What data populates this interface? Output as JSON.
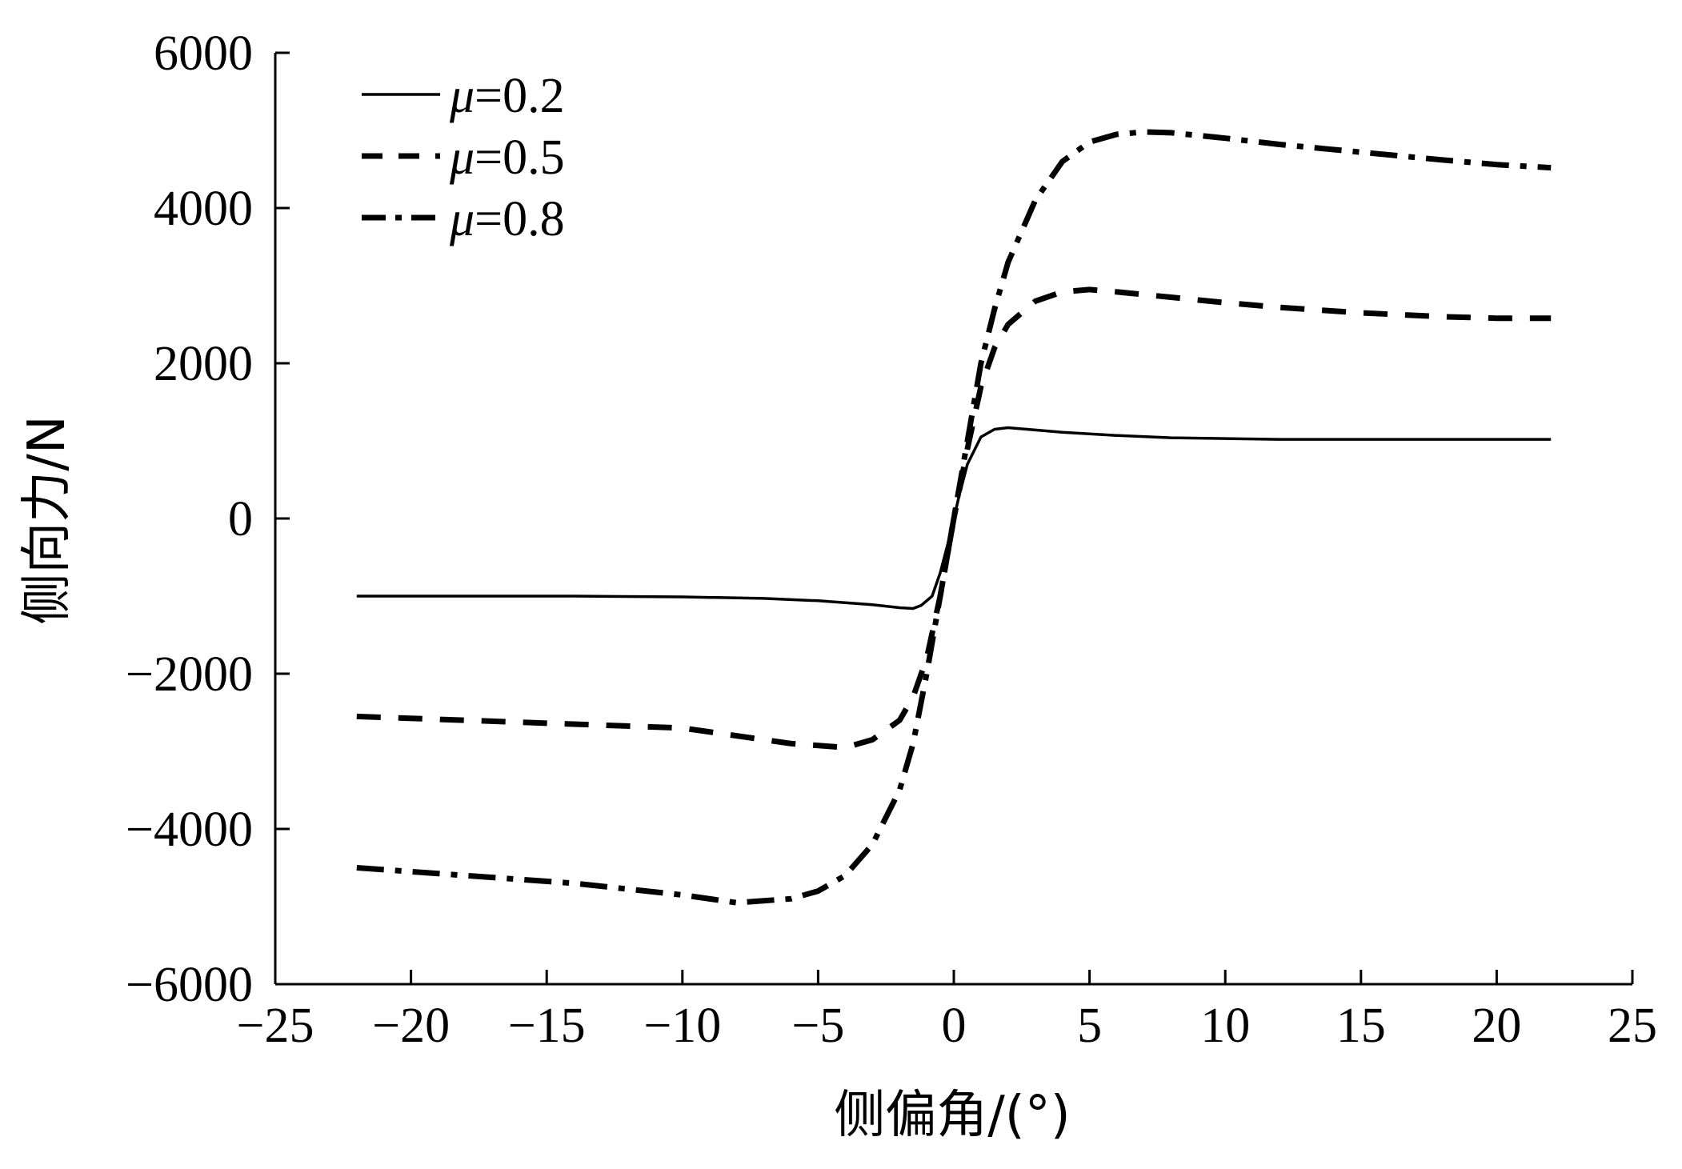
{
  "chart_data": {
    "type": "line",
    "xlabel": "侧偏角/(°)",
    "ylabel": "侧向力/N",
    "xlim": [
      -25,
      25
    ],
    "ylim": [
      -6000,
      6000
    ],
    "xticks": [
      "−25",
      "−20",
      "−15",
      "−10",
      "−5",
      "0",
      "5",
      "10",
      "15",
      "20",
      "25"
    ],
    "yticks": [
      "−6000",
      "−4000",
      "−2000",
      "0",
      "2000",
      "4000",
      "6000"
    ],
    "grid": false,
    "legend_position": "top-left",
    "series": [
      {
        "name": "μ=0.2",
        "mu_symbol": "μ",
        "mu_value": "=0.2",
        "style": "solid",
        "color": "#000000",
        "points": [
          [
            -22,
            -1000
          ],
          [
            -18,
            -1000
          ],
          [
            -14,
            -1000
          ],
          [
            -10,
            -1010
          ],
          [
            -7,
            -1030
          ],
          [
            -5,
            -1060
          ],
          [
            -3,
            -1110
          ],
          [
            -2,
            -1150
          ],
          [
            -1.5,
            -1160
          ],
          [
            -1.2,
            -1120
          ],
          [
            -0.8,
            -1000
          ],
          [
            -0.5,
            -700
          ],
          [
            -0.2,
            -300
          ],
          [
            0,
            0
          ],
          [
            0.2,
            300
          ],
          [
            0.5,
            700
          ],
          [
            1,
            1050
          ],
          [
            1.5,
            1150
          ],
          [
            2,
            1170
          ],
          [
            3,
            1140
          ],
          [
            4,
            1110
          ],
          [
            6,
            1070
          ],
          [
            8,
            1040
          ],
          [
            10,
            1030
          ],
          [
            12,
            1020
          ],
          [
            16,
            1020
          ],
          [
            20,
            1020
          ],
          [
            22,
            1020
          ]
        ]
      },
      {
        "name": "μ=0.5",
        "mu_symbol": "μ",
        "mu_value": "=0.5",
        "style": "dashed",
        "color": "#000000",
        "points": [
          [
            -22,
            -2550
          ],
          [
            -18,
            -2600
          ],
          [
            -14,
            -2650
          ],
          [
            -10,
            -2700
          ],
          [
            -8,
            -2800
          ],
          [
            -6,
            -2900
          ],
          [
            -4,
            -2950
          ],
          [
            -3,
            -2850
          ],
          [
            -2,
            -2600
          ],
          [
            -1.5,
            -2300
          ],
          [
            -1,
            -1800
          ],
          [
            -0.5,
            -1000
          ],
          [
            0,
            0
          ],
          [
            0.5,
            900
          ],
          [
            1,
            1700
          ],
          [
            1.5,
            2200
          ],
          [
            2,
            2500
          ],
          [
            3,
            2800
          ],
          [
            4,
            2920
          ],
          [
            5,
            2950
          ],
          [
            6,
            2920
          ],
          [
            8,
            2850
          ],
          [
            10,
            2780
          ],
          [
            12,
            2720
          ],
          [
            15,
            2650
          ],
          [
            18,
            2600
          ],
          [
            20,
            2580
          ],
          [
            22,
            2580
          ]
        ]
      },
      {
        "name": "μ=0.8",
        "mu_symbol": "μ",
        "mu_value": "=0.8",
        "style": "dashdot",
        "color": "#000000",
        "points": [
          [
            -22,
            -4500
          ],
          [
            -18,
            -4600
          ],
          [
            -14,
            -4700
          ],
          [
            -10,
            -4850
          ],
          [
            -8,
            -4950
          ],
          [
            -6,
            -4900
          ],
          [
            -5,
            -4800
          ],
          [
            -4,
            -4600
          ],
          [
            -3,
            -4200
          ],
          [
            -2,
            -3500
          ],
          [
            -1.5,
            -2900
          ],
          [
            -1,
            -2000
          ],
          [
            -0.5,
            -1000
          ],
          [
            0,
            0
          ],
          [
            0.5,
            1000
          ],
          [
            1,
            2000
          ],
          [
            1.5,
            2700
          ],
          [
            2,
            3300
          ],
          [
            3,
            4100
          ],
          [
            4,
            4600
          ],
          [
            5,
            4850
          ],
          [
            6,
            4950
          ],
          [
            7,
            4980
          ],
          [
            8,
            4970
          ],
          [
            10,
            4900
          ],
          [
            12,
            4820
          ],
          [
            15,
            4720
          ],
          [
            18,
            4620
          ],
          [
            20,
            4560
          ],
          [
            22,
            4520
          ]
        ]
      }
    ]
  }
}
